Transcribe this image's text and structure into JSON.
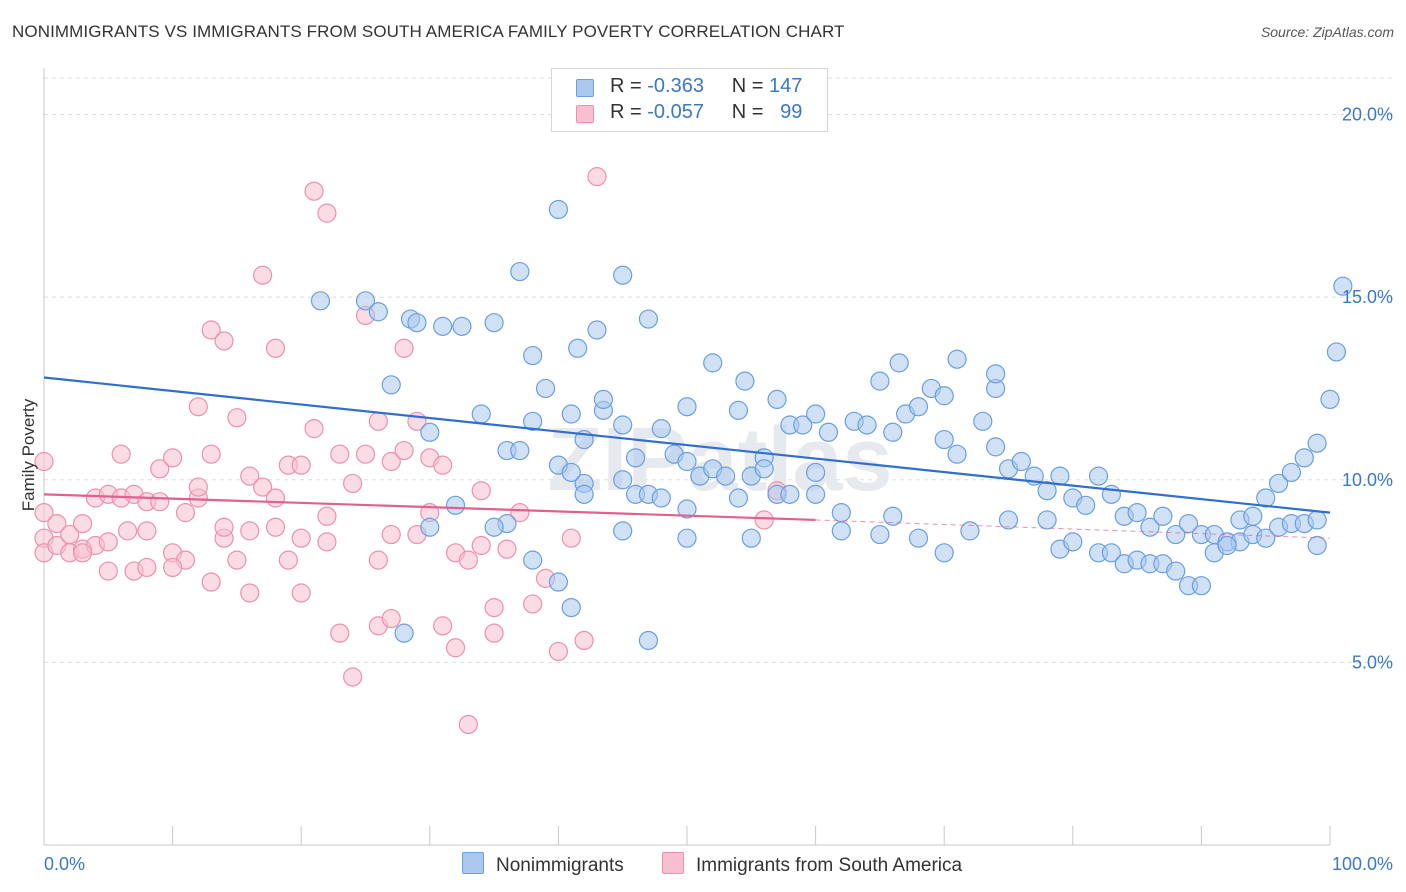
{
  "title": "NONIMMIGRANTS VS IMMIGRANTS FROM SOUTH AMERICA FAMILY POVERTY CORRELATION CHART",
  "source": "Source: ZipAtlas.com",
  "watermark": "ZIPatlas",
  "legend": {
    "row1": {
      "r_label": "R =",
      "r_value": "-0.363",
      "n_label": "N =",
      "n_value": "147"
    },
    "row2": {
      "r_label": "R =",
      "r_value": "-0.057",
      "n_label": "N =",
      "n_value": "99"
    }
  },
  "bottom_legend": {
    "series1": "Nonimmigrants",
    "series2": "Immigrants from South America"
  },
  "colors": {
    "blue_fill": "#aac8ee",
    "blue_stroke": "#6a9fe0",
    "blue_line": "#2f6fd0",
    "pink_fill": "#f7bfd0",
    "pink_stroke": "#ec90ae",
    "pink_line": "#e35f8e",
    "tick_text": "#3a78c8",
    "grid": "#dddddd"
  },
  "chart_data": {
    "type": "scatter",
    "title": "NONIMMIGRANTS VS IMMIGRANTS FROM SOUTH AMERICA FAMILY POVERTY CORRELATION CHART",
    "xlabel": "",
    "ylabel": "Family Poverty",
    "xlim": [
      0,
      100
    ],
    "ylim": [
      0,
      21
    ],
    "x_tick_labels": [
      "0.0%",
      "100.0%"
    ],
    "y_ticks": [
      5,
      10,
      15,
      20
    ],
    "y_tick_labels": [
      "5.0%",
      "10.0%",
      "15.0%",
      "20.0%"
    ],
    "grid": true,
    "legend_placement": "top-center",
    "series": [
      {
        "name": "Nonimmigrants",
        "R": -0.363,
        "N": 147,
        "trend": {
          "x": [
            0,
            100
          ],
          "y": [
            12.8,
            9.1
          ]
        },
        "points": [
          [
            21.5,
            14.9
          ],
          [
            25,
            14.9
          ],
          [
            26,
            14.6
          ],
          [
            28.5,
            14.4
          ],
          [
            29,
            14.3
          ],
          [
            31,
            14.2
          ],
          [
            32.5,
            14.2
          ],
          [
            35,
            14.3
          ],
          [
            37,
            15.7
          ],
          [
            40,
            17.4
          ],
          [
            41.5,
            13.6
          ],
          [
            43,
            14.1
          ],
          [
            45,
            15.6
          ],
          [
            47,
            14.4
          ],
          [
            27,
            12.6
          ],
          [
            30,
            11.3
          ],
          [
            34,
            11.8
          ],
          [
            38,
            13.4
          ],
          [
            39,
            12.5
          ],
          [
            41,
            11.8
          ],
          [
            42,
            11.1
          ],
          [
            43.5,
            11.9
          ],
          [
            45,
            11.5
          ],
          [
            46,
            10.6
          ],
          [
            48,
            11.4
          ],
          [
            49,
            10.7
          ],
          [
            36,
            10.8
          ],
          [
            38,
            11.6
          ],
          [
            37,
            10.8
          ],
          [
            40,
            10.4
          ],
          [
            42,
            9.9
          ],
          [
            45,
            10.0
          ],
          [
            46,
            9.6
          ],
          [
            47,
            9.6
          ],
          [
            48,
            9.5
          ],
          [
            50,
            10.5
          ],
          [
            51,
            10.1
          ],
          [
            52,
            10.3
          ],
          [
            53,
            10.1
          ],
          [
            55,
            10.1
          ],
          [
            56,
            10.6
          ],
          [
            54,
            9.5
          ],
          [
            50,
            9.2
          ],
          [
            42,
            9.6
          ],
          [
            41,
            10.2
          ],
          [
            43.5,
            12.2
          ],
          [
            50,
            12.0
          ],
          [
            52,
            13.2
          ],
          [
            54.5,
            12.7
          ],
          [
            54,
            11.9
          ],
          [
            57,
            12.2
          ],
          [
            58,
            11.5
          ],
          [
            59,
            11.5
          ],
          [
            60,
            11.8
          ],
          [
            61,
            11.3
          ],
          [
            63,
            11.6
          ],
          [
            64,
            11.5
          ],
          [
            65,
            12.7
          ],
          [
            66,
            11.3
          ],
          [
            66.5,
            13.2
          ],
          [
            67,
            11.8
          ],
          [
            68,
            12.0
          ],
          [
            69,
            12.5
          ],
          [
            70,
            11.1
          ],
          [
            71,
            10.7
          ],
          [
            73,
            11.6
          ],
          [
            74,
            10.9
          ],
          [
            75,
            10.3
          ],
          [
            76,
            10.5
          ],
          [
            77,
            10.1
          ],
          [
            78,
            9.7
          ],
          [
            79,
            10.1
          ],
          [
            80,
            9.5
          ],
          [
            81,
            9.3
          ],
          [
            82,
            10.1
          ],
          [
            83,
            9.6
          ],
          [
            84,
            9.0
          ],
          [
            85,
            9.1
          ],
          [
            86,
            8.7
          ],
          [
            87,
            9.0
          ],
          [
            88,
            8.5
          ],
          [
            89,
            8.8
          ],
          [
            90,
            8.5
          ],
          [
            91,
            8.5
          ],
          [
            92,
            8.3
          ],
          [
            93,
            8.3
          ],
          [
            94,
            8.5
          ],
          [
            95,
            8.4
          ],
          [
            96,
            8.7
          ],
          [
            97,
            8.8
          ],
          [
            98,
            8.8
          ],
          [
            99,
            8.9
          ],
          [
            99,
            8.2
          ],
          [
            74,
            12.5
          ],
          [
            70,
            12.3
          ],
          [
            71,
            13.3
          ],
          [
            74,
            12.9
          ],
          [
            60,
            9.6
          ],
          [
            62,
            9.1
          ],
          [
            56,
            10.3
          ],
          [
            57,
            9.6
          ],
          [
            58,
            9.6
          ],
          [
            60,
            10.2
          ],
          [
            62,
            8.6
          ],
          [
            65,
            8.5
          ],
          [
            66,
            9.0
          ],
          [
            68,
            8.4
          ],
          [
            70,
            8.0
          ],
          [
            72,
            8.6
          ],
          [
            75,
            8.9
          ],
          [
            78,
            8.9
          ],
          [
            79,
            8.1
          ],
          [
            80,
            8.3
          ],
          [
            82,
            8.0
          ],
          [
            83,
            8.0
          ],
          [
            84,
            7.7
          ],
          [
            85,
            7.8
          ],
          [
            86,
            7.7
          ],
          [
            87,
            7.7
          ],
          [
            88,
            7.5
          ],
          [
            89,
            7.1
          ],
          [
            90,
            7.1
          ],
          [
            91,
            8.0
          ],
          [
            92,
            8.2
          ],
          [
            93,
            8.9
          ],
          [
            94,
            9.0
          ],
          [
            95,
            9.5
          ],
          [
            96,
            9.9
          ],
          [
            97,
            10.2
          ],
          [
            98,
            10.6
          ],
          [
            99,
            11.0
          ],
          [
            100,
            12.2
          ],
          [
            100.5,
            13.5
          ],
          [
            101,
            15.3
          ],
          [
            30,
            8.7
          ],
          [
            32,
            9.3
          ],
          [
            36,
            8.8
          ],
          [
            38,
            7.8
          ],
          [
            40,
            7.2
          ],
          [
            41,
            6.5
          ],
          [
            47,
            5.6
          ],
          [
            50,
            8.4
          ],
          [
            55,
            8.4
          ],
          [
            45,
            8.6
          ],
          [
            35,
            8.7
          ],
          [
            28,
            5.8
          ]
        ]
      },
      {
        "name": "Immigrants from South America",
        "R": -0.057,
        "N": 99,
        "trend": {
          "x": [
            0,
            60
          ],
          "y": [
            9.6,
            8.9
          ]
        },
        "trend_extension": {
          "x": [
            60,
            100
          ],
          "y": [
            8.9,
            8.4
          ]
        },
        "points": [
          [
            0,
            10.5
          ],
          [
            0,
            9.1
          ],
          [
            0,
            8.4
          ],
          [
            0,
            8.0
          ],
          [
            1,
            8.8
          ],
          [
            1,
            8.2
          ],
          [
            2,
            8.5
          ],
          [
            2,
            8.0
          ],
          [
            3,
            8.8
          ],
          [
            3,
            8.1
          ],
          [
            4,
            9.5
          ],
          [
            4,
            8.2
          ],
          [
            5,
            9.6
          ],
          [
            5,
            7.5
          ],
          [
            6,
            10.7
          ],
          [
            6,
            9.5
          ],
          [
            6.5,
            8.6
          ],
          [
            7,
            9.6
          ],
          [
            7,
            7.5
          ],
          [
            8,
            9.4
          ],
          [
            8,
            7.6
          ],
          [
            9,
            10.3
          ],
          [
            9,
            9.4
          ],
          [
            10,
            10.6
          ],
          [
            10,
            8.0
          ],
          [
            11,
            9.1
          ],
          [
            11,
            7.8
          ],
          [
            12,
            12.0
          ],
          [
            12,
            9.5
          ],
          [
            13,
            14.1
          ],
          [
            13,
            10.7
          ],
          [
            14,
            13.8
          ],
          [
            14,
            8.4
          ],
          [
            15,
            11.7
          ],
          [
            15,
            7.8
          ],
          [
            16,
            10.1
          ],
          [
            16,
            8.6
          ],
          [
            17,
            15.6
          ],
          [
            17,
            9.8
          ],
          [
            18,
            13.6
          ],
          [
            18,
            8.7
          ],
          [
            19,
            10.4
          ],
          [
            19,
            7.8
          ],
          [
            20,
            10.4
          ],
          [
            20,
            6.9
          ],
          [
            21,
            17.9
          ],
          [
            21,
            11.4
          ],
          [
            22,
            17.3
          ],
          [
            22,
            9.0
          ],
          [
            23,
            10.7
          ],
          [
            23,
            5.8
          ],
          [
            24,
            9.9
          ],
          [
            24,
            4.6
          ],
          [
            25,
            14.5
          ],
          [
            25,
            10.7
          ],
          [
            26,
            11.6
          ],
          [
            26,
            7.8
          ],
          [
            27,
            10.5
          ],
          [
            27,
            8.5
          ],
          [
            28,
            13.6
          ],
          [
            28,
            10.8
          ],
          [
            29,
            11.6
          ],
          [
            29,
            8.5
          ],
          [
            30,
            10.6
          ],
          [
            30,
            9.1
          ],
          [
            31,
            10.4
          ],
          [
            31,
            6.0
          ],
          [
            32,
            8.0
          ],
          [
            32,
            5.4
          ],
          [
            33,
            7.8
          ],
          [
            33,
            3.3
          ],
          [
            34,
            9.7
          ],
          [
            34,
            8.2
          ],
          [
            35,
            6.5
          ],
          [
            35,
            5.8
          ],
          [
            36,
            8.1
          ],
          [
            37,
            9.1
          ],
          [
            38,
            6.6
          ],
          [
            39,
            7.3
          ],
          [
            40,
            5.3
          ],
          [
            41,
            8.4
          ],
          [
            42,
            5.6
          ],
          [
            43,
            18.3
          ],
          [
            57,
            9.7
          ],
          [
            56,
            8.9
          ],
          [
            26,
            6.0
          ],
          [
            27,
            6.2
          ],
          [
            16,
            6.9
          ],
          [
            20,
            8.4
          ],
          [
            22,
            8.3
          ],
          [
            18,
            9.5
          ],
          [
            14,
            8.7
          ],
          [
            12,
            9.8
          ],
          [
            10,
            7.6
          ],
          [
            8,
            8.6
          ],
          [
            3,
            8.0
          ],
          [
            5,
            8.3
          ],
          [
            13,
            7.2
          ]
        ]
      }
    ]
  }
}
